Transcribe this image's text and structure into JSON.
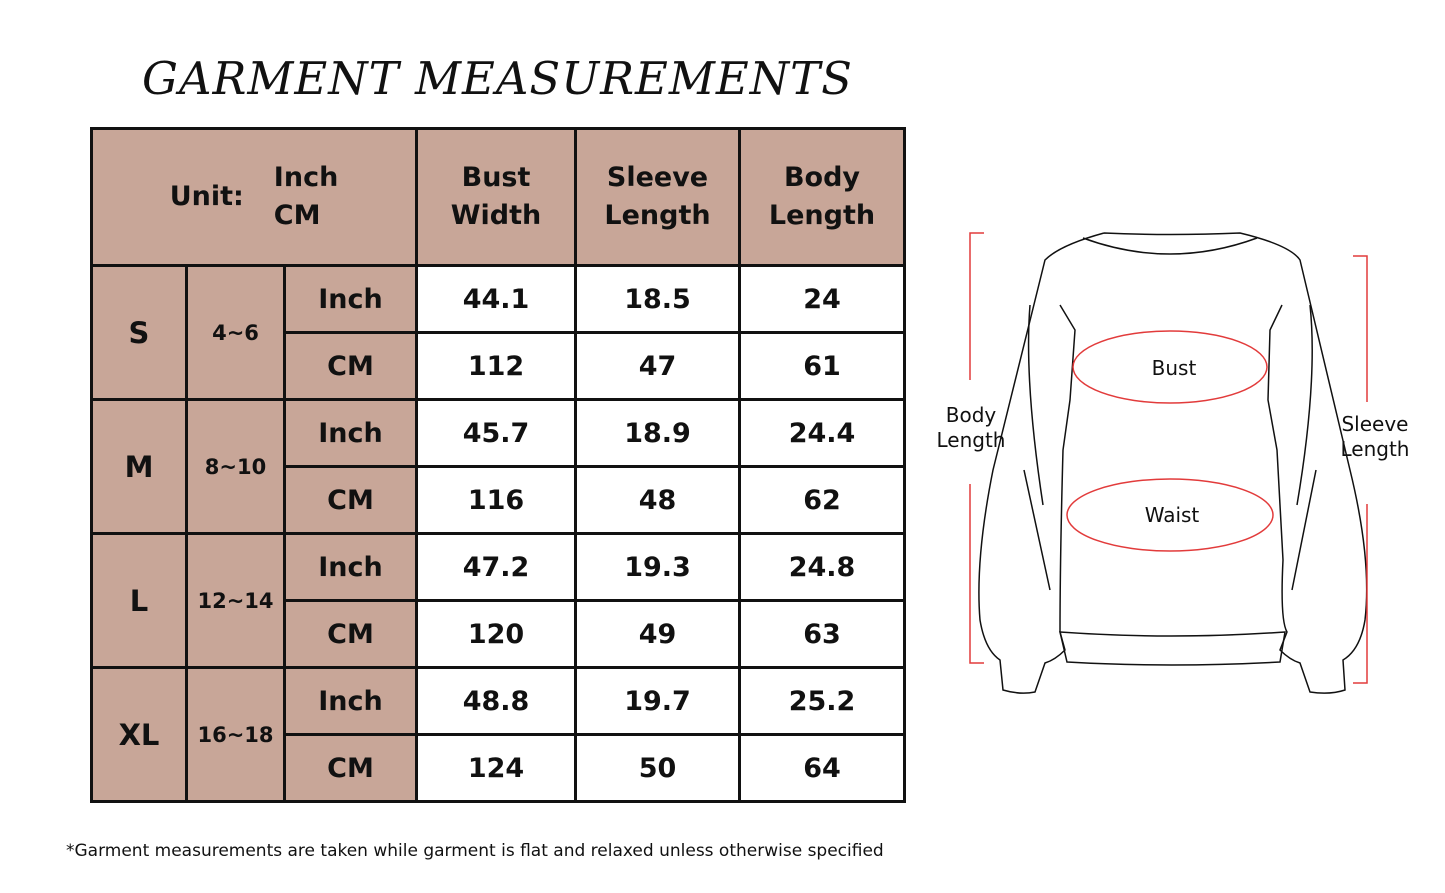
{
  "title": "GARMENT MEASUREMENTS",
  "header": {
    "unit_label": "Unit:",
    "unit_inch": "Inch",
    "unit_cm": "CM",
    "columns": [
      [
        "Bust",
        "Width"
      ],
      [
        "Sleeve",
        "Length"
      ],
      [
        "Body",
        "Length"
      ]
    ]
  },
  "rows": [
    {
      "size": "S",
      "range": "4~6",
      "inch": [
        "44.1",
        "18.5",
        "24"
      ],
      "cm": [
        "112",
        "47",
        "61"
      ]
    },
    {
      "size": "M",
      "range": "8~10",
      "inch": [
        "45.7",
        "18.9",
        "24.4"
      ],
      "cm": [
        "116",
        "48",
        "62"
      ]
    },
    {
      "size": "L",
      "range": "12~14",
      "inch": [
        "47.2",
        "19.3",
        "24.8"
      ],
      "cm": [
        "120",
        "49",
        "63"
      ]
    },
    {
      "size": "XL",
      "range": "16~18",
      "inch": [
        "48.8",
        "19.7",
        "25.2"
      ],
      "cm": [
        "124",
        "50",
        "64"
      ]
    }
  ],
  "unit_inch": "Inch",
  "unit_cm": "CM",
  "note": "*Garment measurements are taken while garment is flat and relaxed unless otherwise specified",
  "diagram": {
    "bust": "Bust",
    "waist": "Waist",
    "body_length": [
      "Body",
      "Length"
    ],
    "sleeve_length": [
      "Sleeve",
      "Length"
    ]
  },
  "colors": {
    "header_bg": "#c8a698",
    "measure_lines": "#e23b3b"
  }
}
